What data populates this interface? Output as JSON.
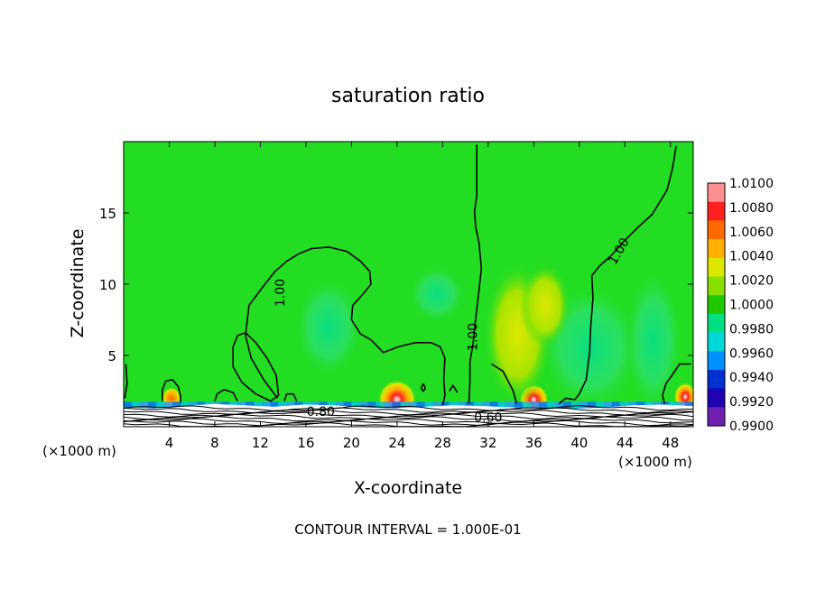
{
  "chart_data": {
    "type": "heatmap",
    "title": "saturation ratio",
    "xlabel": "X-coordinate",
    "ylabel": "Z-coordinate",
    "x_unit_label_left": "(×1000 m)",
    "x_unit_label_right": "(×1000 m)",
    "footer": "CONTOUR INTERVAL = 1.000E-01",
    "xlim": [
      0,
      50
    ],
    "ylim": [
      0,
      20
    ],
    "x_ticks": [
      4,
      8,
      12,
      16,
      20,
      24,
      28,
      32,
      36,
      40,
      44,
      48
    ],
    "x_tick_labels": [
      "4",
      "8",
      "12",
      "16",
      "20",
      "24",
      "28",
      "32",
      "36",
      "40",
      "44",
      "48"
    ],
    "y_ticks": [
      5,
      10,
      15
    ],
    "y_tick_labels": [
      "5",
      "10",
      "15"
    ],
    "colorbar": {
      "min": 0.99,
      "max": 1.01,
      "labels": [
        "1.0100",
        "1.0080",
        "1.0060",
        "1.0040",
        "1.0020",
        "1.0000",
        "0.9980",
        "0.9960",
        "0.9940",
        "0.9920",
        "0.9900"
      ],
      "colors": [
        "#ff9090",
        "#ff2020",
        "#ff6a00",
        "#ffb000",
        "#dde800",
        "#88e000",
        "#20c800",
        "#00e080",
        "#00d8d8",
        "#0090ff",
        "#0030d0",
        "#2000b0",
        "#7020b0"
      ]
    },
    "background_color": "#22dd22",
    "contour_labels": [
      {
        "text": "1.00",
        "x": 13.8,
        "y": 9.4,
        "angle": -90
      },
      {
        "text": "1.00",
        "x": 30.7,
        "y": 6.3,
        "angle": -90
      },
      {
        "text": "1.00",
        "x": 43.5,
        "y": 12.3,
        "angle": -60
      },
      {
        "text": "0.80",
        "x": 17.3,
        "y": 1.0,
        "angle": 0
      },
      {
        "text": "0.60",
        "x": 32.0,
        "y": 0.6,
        "angle": 0
      }
    ],
    "contours_1_00": [
      [
        [
          13.5,
          2.0
        ],
        [
          12.3,
          3.3
        ],
        [
          11.2,
          4.8
        ],
        [
          10.7,
          6.4
        ],
        [
          11.0,
          8.5
        ],
        [
          12.3,
          9.9
        ],
        [
          13.3,
          10.9
        ],
        [
          14.3,
          11.6
        ],
        [
          15.3,
          12.1
        ],
        [
          16.5,
          12.5
        ],
        [
          18.0,
          12.6
        ],
        [
          19.6,
          12.3
        ],
        [
          20.8,
          11.6
        ],
        [
          21.6,
          10.9
        ],
        [
          21.7,
          10.0
        ],
        [
          21.0,
          9.3
        ],
        [
          20.1,
          8.5
        ],
        [
          20.0,
          7.5
        ],
        [
          20.8,
          6.5
        ],
        [
          21.7,
          6.1
        ],
        [
          22.8,
          5.2
        ],
        [
          24.1,
          5.6
        ],
        [
          25.6,
          5.9
        ],
        [
          27.0,
          5.9
        ],
        [
          27.8,
          5.6
        ],
        [
          28.2,
          4.8
        ],
        [
          28.1,
          3.4
        ],
        [
          28.2,
          2.2
        ],
        [
          28.0,
          1.5
        ]
      ],
      [
        [
          30.3,
          1.6
        ],
        [
          30.4,
          3.1
        ],
        [
          30.4,
          4.5
        ],
        [
          30.7,
          6.0
        ],
        [
          30.9,
          7.6
        ],
        [
          31.2,
          9.6
        ],
        [
          31.4,
          11.1
        ],
        [
          31.2,
          12.9
        ],
        [
          30.9,
          14.0
        ],
        [
          30.8,
          15.1
        ],
        [
          31.0,
          16.2
        ],
        [
          31.0,
          19.8
        ]
      ],
      [
        [
          32.3,
          4.4
        ],
        [
          33.3,
          3.9
        ],
        [
          34.2,
          2.5
        ],
        [
          34.5,
          1.6
        ]
      ],
      [
        [
          38.2,
          1.6
        ],
        [
          38.8,
          2.0
        ],
        [
          39.6,
          1.9
        ],
        [
          40.0,
          2.3
        ],
        [
          40.6,
          3.3
        ],
        [
          40.9,
          5.2
        ],
        [
          41.0,
          7.0
        ],
        [
          41.2,
          9.0
        ],
        [
          41.1,
          10.6
        ],
        [
          41.8,
          11.3
        ],
        [
          42.8,
          12.0
        ],
        [
          43.9,
          13.0
        ],
        [
          45.3,
          14.1
        ],
        [
          46.4,
          14.9
        ],
        [
          47.7,
          16.6
        ],
        [
          48.2,
          18.2
        ],
        [
          48.5,
          19.7
        ]
      ],
      [
        [
          49.8,
          4.4
        ],
        [
          48.8,
          4.4
        ],
        [
          48.3,
          3.8
        ],
        [
          47.6,
          3.0
        ],
        [
          47.3,
          2.2
        ],
        [
          47.5,
          1.6
        ]
      ],
      [
        [
          0.2,
          4.4
        ],
        [
          0.3,
          3.0
        ],
        [
          0.1,
          2.0
        ]
      ],
      [
        [
          3.4,
          1.8
        ],
        [
          3.4,
          2.6
        ],
        [
          3.7,
          3.2
        ],
        [
          4.3,
          3.3
        ],
        [
          4.8,
          2.8
        ],
        [
          5.0,
          2.1
        ],
        [
          5.0,
          1.7
        ]
      ],
      [
        [
          8.0,
          1.8
        ],
        [
          8.2,
          2.3
        ],
        [
          8.8,
          2.6
        ],
        [
          9.6,
          2.4
        ],
        [
          10.0,
          1.8
        ]
      ],
      [
        [
          10.0,
          6.4
        ],
        [
          9.6,
          5.6
        ],
        [
          9.6,
          4.2
        ],
        [
          10.4,
          3.1
        ],
        [
          11.6,
          2.3
        ],
        [
          12.9,
          1.8
        ],
        [
          13.6,
          2.2
        ],
        [
          13.4,
          3.6
        ],
        [
          12.6,
          4.8
        ],
        [
          11.6,
          5.9
        ],
        [
          10.7,
          6.6
        ],
        [
          10.0,
          6.4
        ]
      ],
      [
        [
          14.1,
          1.8
        ],
        [
          14.3,
          2.3
        ],
        [
          14.9,
          2.3
        ],
        [
          15.2,
          1.8
        ]
      ],
      [
        [
          26.1,
          2.7
        ],
        [
          26.3,
          3.0
        ],
        [
          26.5,
          2.7
        ],
        [
          26.3,
          2.5
        ],
        [
          26.1,
          2.7
        ]
      ],
      [
        [
          28.6,
          2.5
        ],
        [
          28.9,
          2.9
        ],
        [
          29.3,
          2.4
        ]
      ]
    ],
    "hotspots": [
      {
        "x": 24.0,
        "y": 1.9,
        "rx": 1.7,
        "ry": 1.4,
        "peak": 1.01
      },
      {
        "x": 36.0,
        "y": 1.9,
        "rx": 1.3,
        "ry": 1.1,
        "peak": 1.01
      },
      {
        "x": 4.2,
        "y": 2.0,
        "rx": 0.9,
        "ry": 0.8,
        "peak": 1.006
      },
      {
        "x": 49.3,
        "y": 2.1,
        "rx": 1.0,
        "ry": 1.0,
        "peak": 1.008
      },
      {
        "x": 34.6,
        "y": 6.5,
        "rx": 3.0,
        "ry": 5.0,
        "peak": 1.003
      },
      {
        "x": 37.0,
        "y": 8.5,
        "rx": 2.2,
        "ry": 3.0,
        "peak": 1.0035
      }
    ],
    "cold_spots": [
      {
        "x": 41.0,
        "y": 5.5,
        "rx": 4.5,
        "ry": 4.5,
        "value": 0.9975
      },
      {
        "x": 46.5,
        "y": 6.0,
        "rx": 2.5,
        "ry": 5.0,
        "value": 0.9972
      },
      {
        "x": 27.5,
        "y": 9.3,
        "rx": 2.5,
        "ry": 2.0,
        "value": 0.998
      },
      {
        "x": 18.0,
        "y": 7.0,
        "rx": 3.0,
        "ry": 3.5,
        "value": 0.9985
      }
    ]
  }
}
